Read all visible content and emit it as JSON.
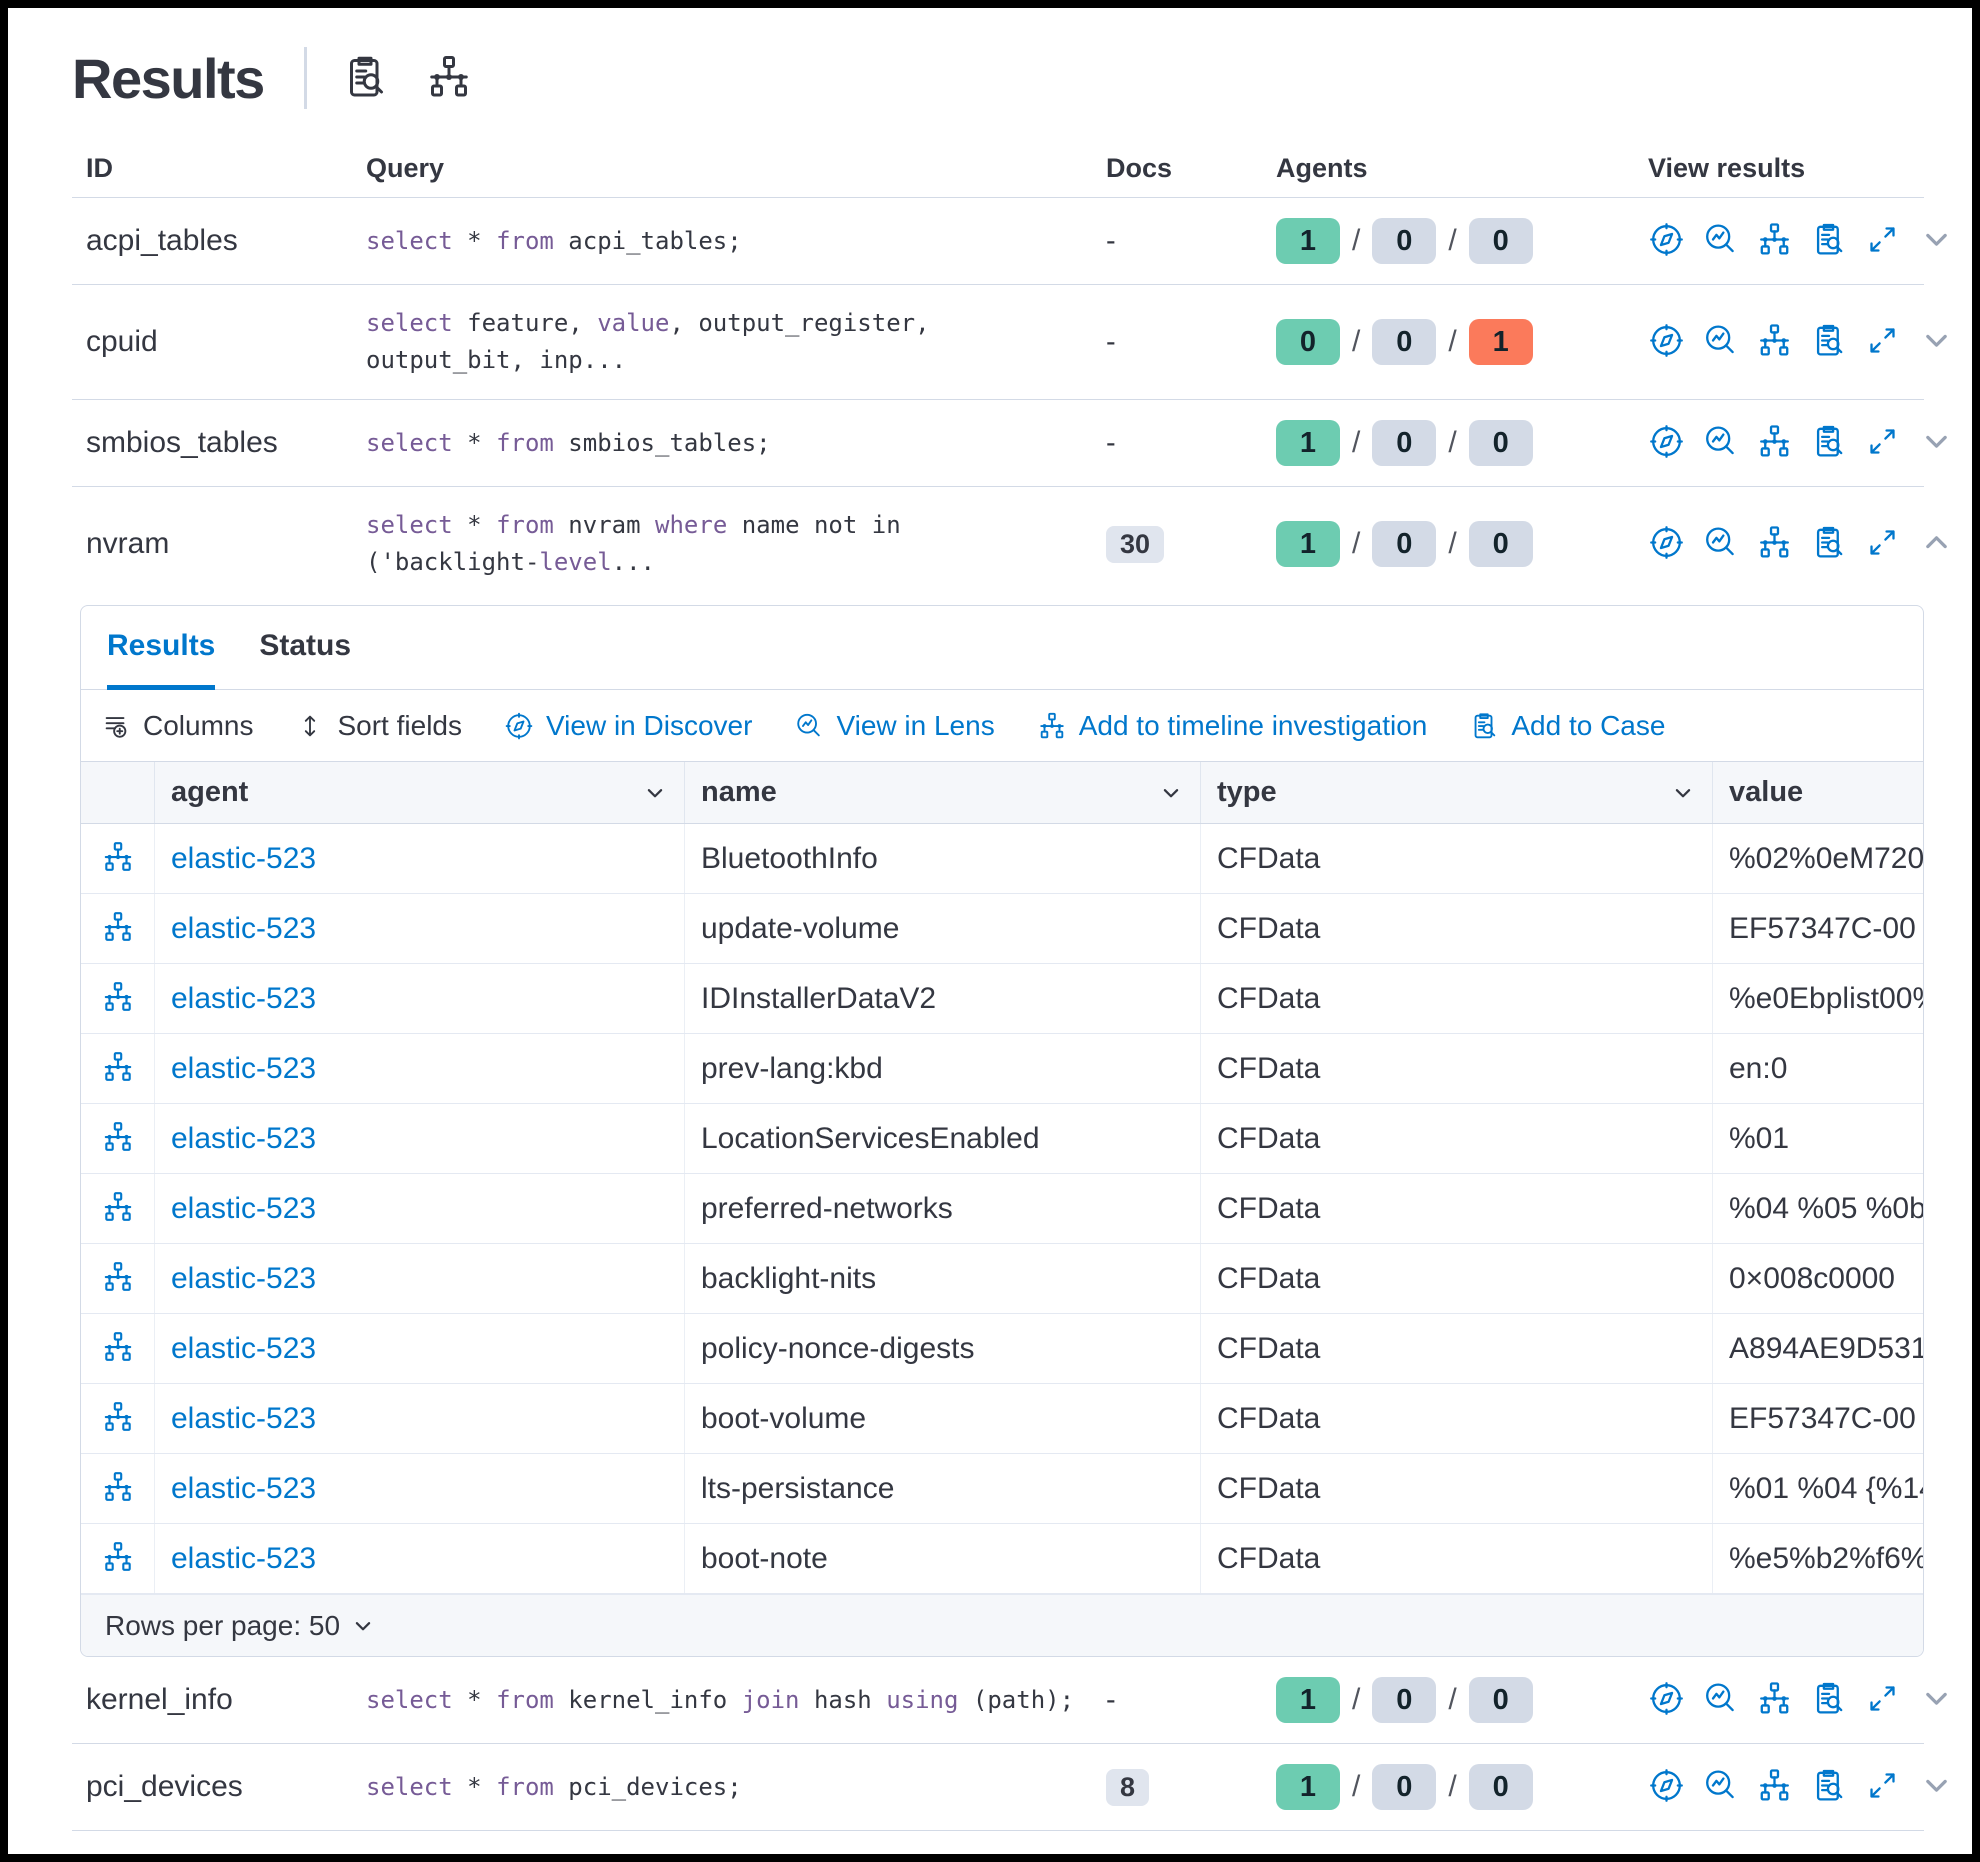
{
  "header": {
    "title": "Results",
    "icons": [
      "live-query-details-icon",
      "packs-icon"
    ]
  },
  "colors": {
    "link_blue": "#0077CC",
    "success_badge": "#6DCCB1",
    "neutral_badge": "#D3DAE6",
    "danger_badge": "#FB7A5B",
    "docs_badge_bg": "#E0E5EE",
    "sql_keyword": "#765B96",
    "active_tab": "#0077CC"
  },
  "table": {
    "columns": [
      "ID",
      "Query",
      "Docs",
      "Agents",
      "View results"
    ],
    "view_icons": [
      "view-in-discover-icon",
      "view-in-lens-icon",
      "add-to-timeline-icon",
      "add-to-case-icon",
      "expand-icon"
    ],
    "rows": [
      {
        "id": "acpi_tables",
        "query": [
          {
            "t": "select",
            "kw": true
          },
          {
            "t": " * "
          },
          {
            "t": "from",
            "kw": true
          },
          {
            "t": " acpi_tables;"
          }
        ],
        "docs": "-",
        "docs_badge": false,
        "agents": [
          {
            "count": "1",
            "status": "success"
          },
          {
            "count": "0",
            "status": "neutral"
          },
          {
            "count": "0",
            "status": "neutral"
          }
        ],
        "expanded": false
      },
      {
        "id": "cpuid",
        "query": [
          {
            "t": "select",
            "kw": true
          },
          {
            "t": " feature, "
          },
          {
            "t": "value",
            "kw": true
          },
          {
            "t": ", output_register,"
          },
          {
            "br": true
          },
          {
            "t": "output_bit, inp..."
          }
        ],
        "docs": "-",
        "docs_badge": false,
        "agents": [
          {
            "count": "0",
            "status": "success"
          },
          {
            "count": "0",
            "status": "neutral"
          },
          {
            "count": "1",
            "status": "danger"
          }
        ],
        "expanded": false
      },
      {
        "id": "smbios_tables",
        "query": [
          {
            "t": "select",
            "kw": true
          },
          {
            "t": " * "
          },
          {
            "t": "from",
            "kw": true
          },
          {
            "t": " smbios_tables;"
          }
        ],
        "docs": "-",
        "docs_badge": false,
        "agents": [
          {
            "count": "1",
            "status": "success"
          },
          {
            "count": "0",
            "status": "neutral"
          },
          {
            "count": "0",
            "status": "neutral"
          }
        ],
        "expanded": false
      },
      {
        "id": "nvram",
        "query": [
          {
            "t": "select",
            "kw": true
          },
          {
            "t": " * "
          },
          {
            "t": "from",
            "kw": true
          },
          {
            "t": " nvram "
          },
          {
            "t": "where",
            "kw": true
          },
          {
            "t": " name not in"
          },
          {
            "br": true
          },
          {
            "t": "('backlight-"
          },
          {
            "t": "level",
            "kw": true
          },
          {
            "t": "..."
          }
        ],
        "docs": "30",
        "docs_badge": true,
        "agents": [
          {
            "count": "1",
            "status": "success"
          },
          {
            "count": "0",
            "status": "neutral"
          },
          {
            "count": "0",
            "status": "neutral"
          }
        ],
        "expanded": true
      },
      {
        "id": "kernel_info",
        "query": [
          {
            "t": "select",
            "kw": true
          },
          {
            "t": " * "
          },
          {
            "t": "from",
            "kw": true
          },
          {
            "t": " kernel_info "
          },
          {
            "t": "join",
            "kw": true
          },
          {
            "t": " hash "
          },
          {
            "t": "using",
            "kw": true
          },
          {
            "t": " (path);"
          }
        ],
        "docs": "-",
        "docs_badge": false,
        "agents": [
          {
            "count": "1",
            "status": "success"
          },
          {
            "count": "0",
            "status": "neutral"
          },
          {
            "count": "0",
            "status": "neutral"
          }
        ],
        "expanded": false
      },
      {
        "id": "pci_devices",
        "query": [
          {
            "t": "select",
            "kw": true
          },
          {
            "t": " * "
          },
          {
            "t": "from",
            "kw": true
          },
          {
            "t": " pci_devices;"
          }
        ],
        "docs": "8",
        "docs_badge": true,
        "agents": [
          {
            "count": "1",
            "status": "success"
          },
          {
            "count": "0",
            "status": "neutral"
          },
          {
            "count": "0",
            "status": "neutral"
          }
        ],
        "expanded": false
      }
    ]
  },
  "panel": {
    "tabs": [
      {
        "label": "Results",
        "active": true
      },
      {
        "label": "Status",
        "active": false
      }
    ],
    "toolbar": [
      {
        "label": "Columns",
        "icon": "columns-icon",
        "style": "dark"
      },
      {
        "label": "Sort fields",
        "icon": "sort-fields-icon",
        "style": "dark"
      },
      {
        "label": "View in Discover",
        "icon": "view-in-discover-icon",
        "style": "link"
      },
      {
        "label": "View in Lens",
        "icon": "view-in-lens-icon",
        "style": "link"
      },
      {
        "label": "Add to timeline investigation",
        "icon": "add-to-timeline-icon",
        "style": "link"
      },
      {
        "label": "Add to Case",
        "icon": "add-to-case-icon",
        "style": "link"
      }
    ],
    "grid": {
      "columns": [
        {
          "label": "",
          "sortable": false
        },
        {
          "label": "agent",
          "sortable": true
        },
        {
          "label": "name",
          "sortable": true
        },
        {
          "label": "type",
          "sortable": true
        },
        {
          "label": "value",
          "sortable": false
        }
      ],
      "rows": [
        {
          "agent": "elastic-523",
          "name": "BluetoothInfo",
          "type": "CFData",
          "value": "%02%0eM720"
        },
        {
          "agent": "elastic-523",
          "name": "update-volume",
          "type": "CFData",
          "value": "EF57347C-00"
        },
        {
          "agent": "elastic-523",
          "name": "IDInstallerDataV2",
          "type": "CFData",
          "value": "%e0Ebplist00%"
        },
        {
          "agent": "elastic-523",
          "name": "prev-lang:kbd",
          "type": "CFData",
          "value": "en:0"
        },
        {
          "agent": "elastic-523",
          "name": "LocationServicesEnabled",
          "type": "CFData",
          "value": "%01"
        },
        {
          "agent": "elastic-523",
          "name": "preferred-networks",
          "type": "CFData",
          "value": "%04 %05 %0b"
        },
        {
          "agent": "elastic-523",
          "name": "backlight-nits",
          "type": "CFData",
          "value": "0×008c0000"
        },
        {
          "agent": "elastic-523",
          "name": "policy-nonce-digests",
          "type": "CFData",
          "value": "A894AE9D531"
        },
        {
          "agent": "elastic-523",
          "name": "boot-volume",
          "type": "CFData",
          "value": "EF57347C-00"
        },
        {
          "agent": "elastic-523",
          "name": "lts-persistance",
          "type": "CFData",
          "value": "%01 %04 {%14"
        },
        {
          "agent": "elastic-523",
          "name": "boot-note",
          "type": "CFData",
          "value": "%e5%b2%f6%"
        }
      ]
    },
    "footer": {
      "rows_per_page": "Rows per page: 50"
    }
  }
}
